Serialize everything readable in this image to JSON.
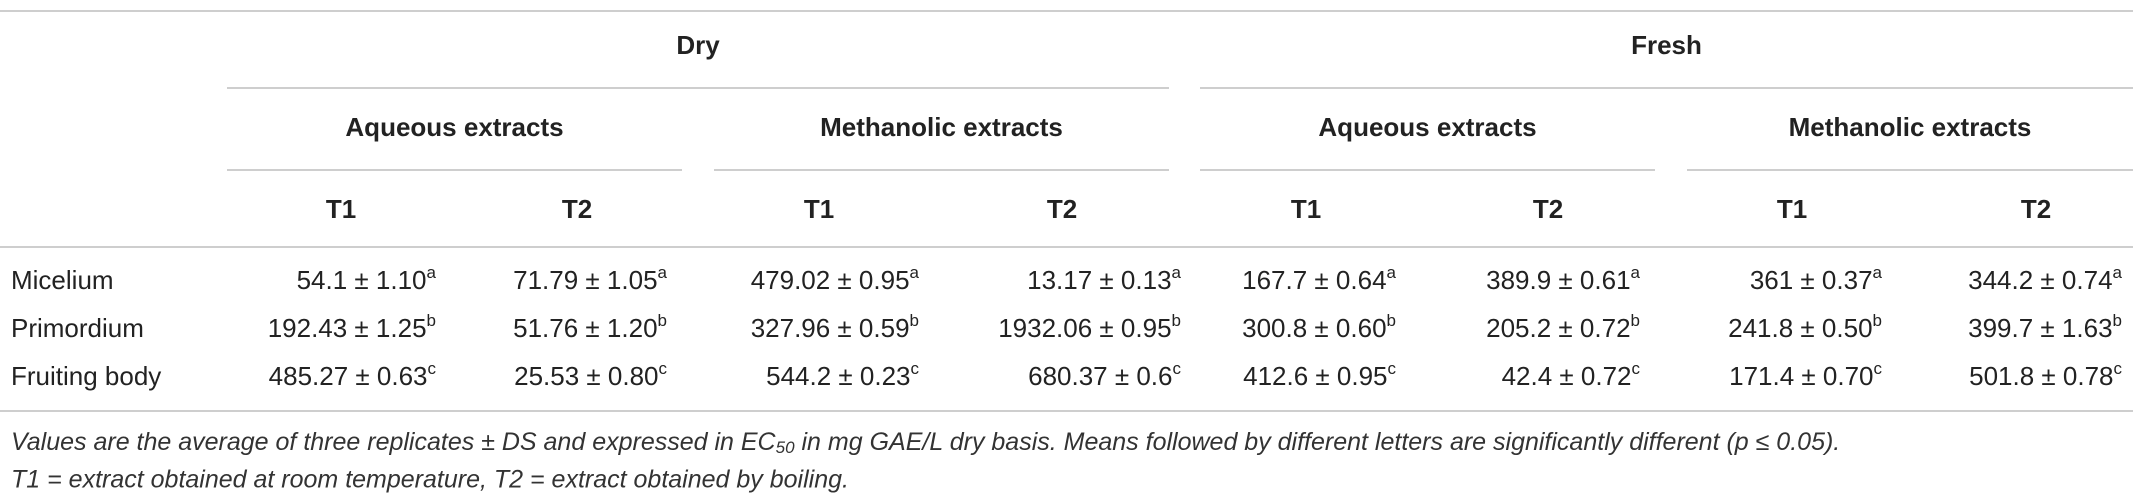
{
  "table": {
    "groups": [
      {
        "label": "Dry",
        "subgroups": [
          {
            "label": "Aqueous extracts",
            "columns": [
              "T1",
              "T2"
            ]
          },
          {
            "label": "Methanolic extracts",
            "columns": [
              "T1",
              "T2"
            ]
          }
        ]
      },
      {
        "label": "Fresh",
        "subgroups": [
          {
            "label": "Aqueous extracts",
            "columns": [
              "T1",
              "T2"
            ]
          },
          {
            "label": "Methanolic extracts",
            "columns": [
              "T1",
              "T2"
            ]
          }
        ]
      }
    ],
    "rows": [
      {
        "label": "Micelium",
        "cells": [
          {
            "value": "54.1 ± 1.10",
            "sup": "a"
          },
          {
            "value": "71.79 ± 1.05",
            "sup": "a"
          },
          {
            "value": "479.02 ± 0.95",
            "sup": "a"
          },
          {
            "value": "13.17 ± 0.13",
            "sup": "a"
          },
          {
            "value": "167.7 ± 0.64",
            "sup": "a"
          },
          {
            "value": "389.9 ± 0.61",
            "sup": "a"
          },
          {
            "value": "361 ± 0.37",
            "sup": "a"
          },
          {
            "value": "344.2 ± 0.74",
            "sup": "a"
          }
        ]
      },
      {
        "label": "Primordium",
        "cells": [
          {
            "value": "192.43 ± 1.25",
            "sup": "b"
          },
          {
            "value": "51.76 ± 1.20",
            "sup": "b"
          },
          {
            "value": "327.96 ± 0.59",
            "sup": "b"
          },
          {
            "value": "1932.06 ± 0.95",
            "sup": "b"
          },
          {
            "value": "300.8 ± 0.60",
            "sup": "b"
          },
          {
            "value": "205.2 ± 0.72",
            "sup": "b"
          },
          {
            "value": "241.8 ± 0.50",
            "sup": "b"
          },
          {
            "value": "399.7 ± 1.63",
            "sup": "b"
          }
        ]
      },
      {
        "label": "Fruiting body",
        "cells": [
          {
            "value": "485.27 ± 0.63",
            "sup": "c"
          },
          {
            "value": "25.53 ± 0.80",
            "sup": "c"
          },
          {
            "value": "544.2 ± 0.23",
            "sup": "c"
          },
          {
            "value": "680.37 ± 0.6",
            "sup": "c"
          },
          {
            "value": "412.6 ± 0.95",
            "sup": "c"
          },
          {
            "value": "42.4 ± 0.72",
            "sup": "c"
          },
          {
            "value": "171.4 ± 0.70",
            "sup": "c"
          },
          {
            "value": "501.8 ± 0.78",
            "sup": "c"
          }
        ]
      }
    ],
    "footnote": {
      "line1_before": "Values are the average of three replicates ± DS and expressed in EC",
      "line1_sub": "50",
      "line1_after": " in mg GAE/L dry basis. Means followed by different letters are significantly different (p ≤ 0.05).",
      "line2": "T1 = extract obtained at room temperature, T2 = extract obtained by boiling."
    }
  }
}
